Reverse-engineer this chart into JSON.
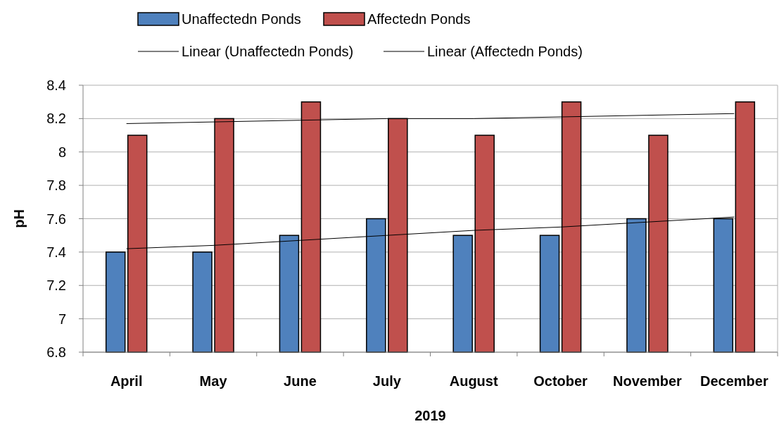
{
  "chart_data": {
    "type": "bar",
    "xlabel": "2019",
    "ylabel": "pH",
    "categories": [
      "April",
      "May",
      "June",
      "July",
      "August",
      "October",
      "November",
      "December"
    ],
    "series": [
      {
        "name": "Unaffectedn Ponds",
        "color": "#4f81bd",
        "values": [
          7.4,
          7.4,
          7.5,
          7.6,
          7.5,
          7.5,
          7.6,
          7.6
        ]
      },
      {
        "name": "Affectedn Ponds",
        "color": "#c0504d",
        "values": [
          8.1,
          8.2,
          8.3,
          8.2,
          8.1,
          8.3,
          8.1,
          8.3
        ]
      },
      {
        "name": "Linear (Unaffectedn Ponds)",
        "type": "line",
        "color": "#000000",
        "values": [
          7.42,
          7.44,
          7.47,
          7.5,
          7.53,
          7.55,
          7.58,
          7.61
        ]
      },
      {
        "name": "Linear (Affectedn Ponds)",
        "type": "line",
        "color": "#000000",
        "values": [
          8.17,
          8.18,
          8.19,
          8.2,
          8.2,
          8.21,
          8.22,
          8.23
        ]
      }
    ],
    "ylim": [
      6.8,
      8.4
    ],
    "yticks": [
      6.8,
      7,
      7.2,
      7.4,
      7.6,
      7.8,
      8,
      8.2,
      8.4
    ],
    "grid": "y",
    "legend": "top"
  }
}
